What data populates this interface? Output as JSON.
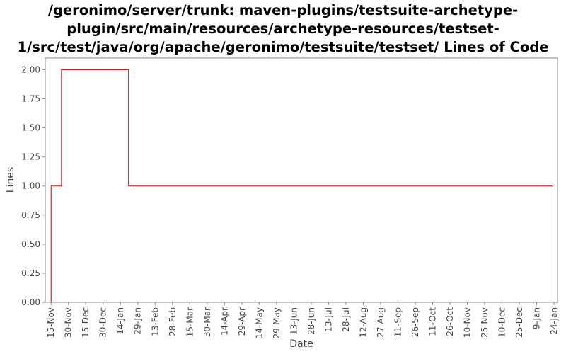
{
  "chart_data": {
    "type": "line",
    "step": true,
    "title_lines": [
      "/geronimo/server/trunk: maven-plugins/testsuite-archetype-",
      "plugin/src/main/resources/archetype-resources/testset-",
      "1/src/test/java/org/apache/geronimo/testsuite/testset/ Lines of Code"
    ],
    "xlabel": "Date",
    "ylabel": "Lines",
    "ylim": [
      0,
      2.1
    ],
    "y_ticks": [
      "0.00",
      "0.25",
      "0.50",
      "0.75",
      "1.00",
      "1.25",
      "1.50",
      "1.75",
      "2.00"
    ],
    "x_ticks": [
      "15-Nov",
      "30-Nov",
      "15-Dec",
      "30-Dec",
      "14-Jan",
      "29-Jan",
      "13-Feb",
      "28-Feb",
      "15-Mar",
      "30-Mar",
      "14-Apr",
      "29-Apr",
      "14-May",
      "29-May",
      "13-Jun",
      "28-Jun",
      "13-Jul",
      "28-Jul",
      "12-Aug",
      "27-Aug",
      "11-Sep",
      "26-Sep",
      "11-Oct",
      "26-Oct",
      "10-Nov",
      "25-Nov",
      "10-Dec",
      "25-Dec",
      "9-Jan",
      "24-Jan"
    ],
    "x_tick_days": [
      0,
      15,
      30,
      45,
      60,
      75,
      90,
      105,
      120,
      135,
      150,
      165,
      180,
      195,
      210,
      225,
      240,
      255,
      270,
      285,
      300,
      315,
      330,
      345,
      360,
      375,
      390,
      405,
      420,
      435
    ],
    "x_range_days": [
      -5,
      438
    ],
    "grid": false,
    "legend": "none",
    "series": [
      {
        "color": "#cc0000",
        "points": [
          {
            "date": "15-Nov",
            "day": 0,
            "y": 0
          },
          {
            "date": "15-Nov",
            "day": 0,
            "y": 1
          },
          {
            "date": "24-Nov",
            "day": 9,
            "y": 2
          },
          {
            "date": "21-Jan",
            "day": 67,
            "y": 1
          },
          {
            "date": "23-Jan",
            "day": 434,
            "y": 0
          }
        ]
      }
    ]
  }
}
